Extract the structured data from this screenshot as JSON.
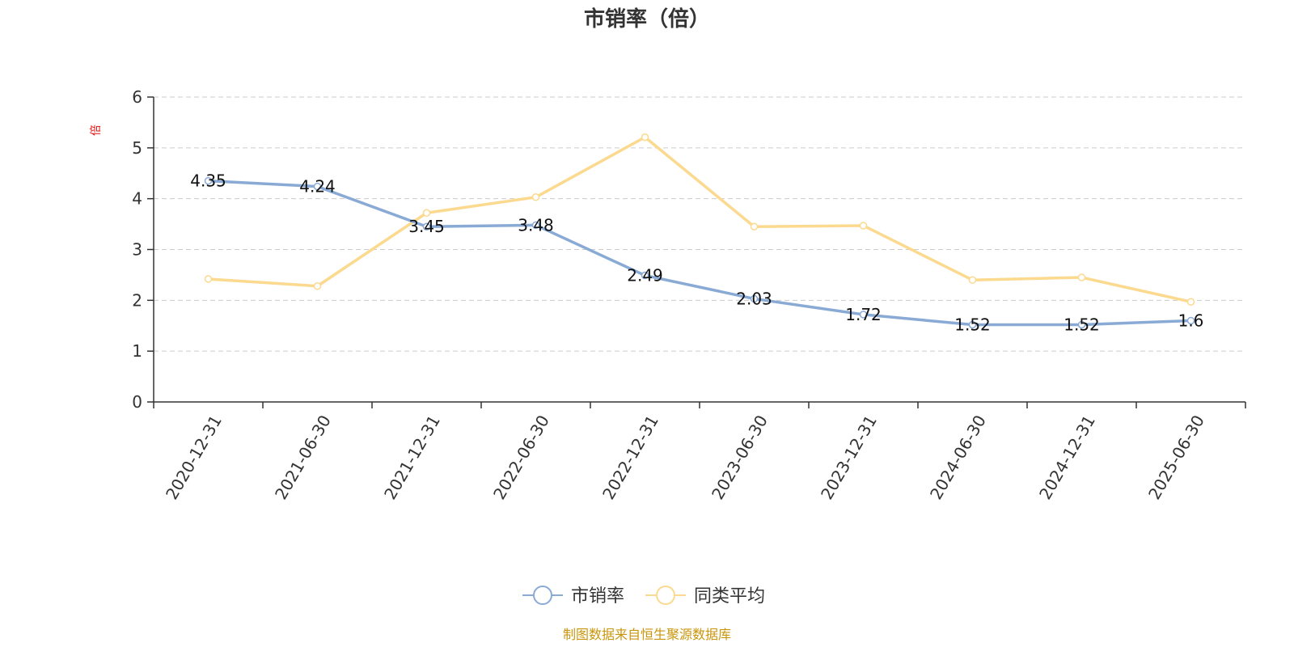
{
  "chart_data": {
    "type": "line",
    "title": "市销率（倍）",
    "y_unit": "倍",
    "categories": [
      "2020-12-31",
      "2021-06-30",
      "2021-12-31",
      "2022-06-30",
      "2022-12-31",
      "2023-06-30",
      "2023-12-31",
      "2024-06-30",
      "2024-12-31",
      "2025-06-30"
    ],
    "ylim": [
      0,
      6
    ],
    "yticks": [
      "0",
      "1",
      "2",
      "3",
      "4",
      "5",
      "6"
    ],
    "grid": true,
    "legend_position": "bottom-center",
    "series": [
      {
        "name": "市销率",
        "color": "#8aaad6",
        "values": [
          4.35,
          4.24,
          3.45,
          3.48,
          2.49,
          2.03,
          1.72,
          1.52,
          1.52,
          1.6
        ],
        "labels": [
          "4.35",
          "4.24",
          "3.45",
          "3.48",
          "2.49",
          "2.03",
          "1.72",
          "1.52",
          "1.52",
          "1.6"
        ]
      },
      {
        "name": "同类平均",
        "color": "#fbd98e",
        "values": [
          2.42,
          2.28,
          3.72,
          4.03,
          5.21,
          3.45,
          3.47,
          2.4,
          2.45,
          1.97
        ]
      }
    ],
    "source": "制图数据来自恒生聚源数据库"
  }
}
